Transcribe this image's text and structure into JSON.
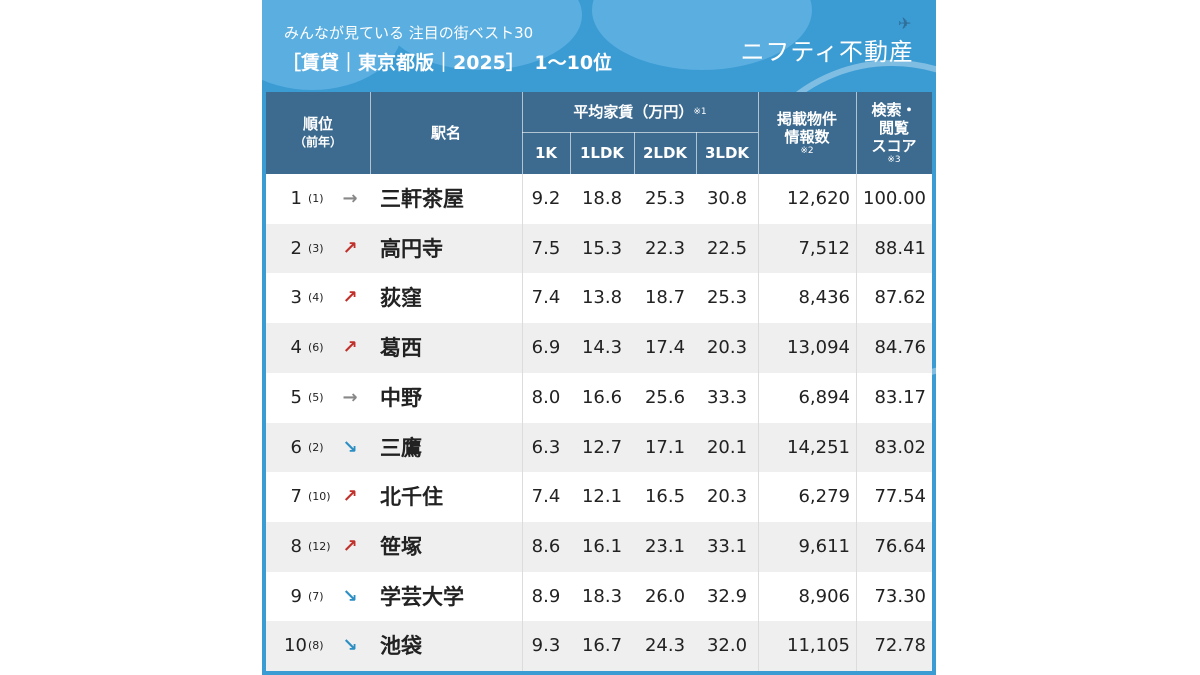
{
  "header": {
    "subtitle": "みんなが見ている 注目の街ベスト30",
    "title": "［賃貸｜東京都版｜2025］　1〜10位",
    "brand": "ニフティ不動産"
  },
  "columns": {
    "rank": "順位",
    "rank_sub": "（前年）",
    "station": "駅名",
    "rent_group": "平均家賃（万円）",
    "rent_note": "※1",
    "k1": "1K",
    "ldk1": "1LDK",
    "ldk2": "2LDK",
    "ldk3": "3LDK",
    "listings": "掲載物件\n情報数",
    "listings_note": "※2",
    "score": "検索・\n閲覧\nスコア",
    "score_note": "※3"
  },
  "colors": {
    "background": "#3b9bd3",
    "header": "#3d6b8f",
    "up": "#c0312b",
    "down": "#2c8fc4",
    "same": "#888888"
  },
  "rows": [
    {
      "rank": "1",
      "prev": "(1)",
      "trend": "same",
      "arrow": "→",
      "name": "三軒茶屋",
      "k1": "9.2",
      "ldk1": "18.8",
      "ldk2": "25.3",
      "ldk3": "30.8",
      "listings": "12,620",
      "score": "100.00"
    },
    {
      "rank": "2",
      "prev": "(3)",
      "trend": "up",
      "arrow": "↗",
      "name": "高円寺",
      "k1": "7.5",
      "ldk1": "15.3",
      "ldk2": "22.3",
      "ldk3": "22.5",
      "listings": "7,512",
      "score": "88.41"
    },
    {
      "rank": "3",
      "prev": "(4)",
      "trend": "up",
      "arrow": "↗",
      "name": "荻窪",
      "k1": "7.4",
      "ldk1": "13.8",
      "ldk2": "18.7",
      "ldk3": "25.3",
      "listings": "8,436",
      "score": "87.62"
    },
    {
      "rank": "4",
      "prev": "(6)",
      "trend": "up",
      "arrow": "↗",
      "name": "葛西",
      "k1": "6.9",
      "ldk1": "14.3",
      "ldk2": "17.4",
      "ldk3": "20.3",
      "listings": "13,094",
      "score": "84.76"
    },
    {
      "rank": "5",
      "prev": "(5)",
      "trend": "same",
      "arrow": "→",
      "name": "中野",
      "k1": "8.0",
      "ldk1": "16.6",
      "ldk2": "25.6",
      "ldk3": "33.3",
      "listings": "6,894",
      "score": "83.17"
    },
    {
      "rank": "6",
      "prev": "(2)",
      "trend": "down",
      "arrow": "↘",
      "name": "三鷹",
      "k1": "6.3",
      "ldk1": "12.7",
      "ldk2": "17.1",
      "ldk3": "20.1",
      "listings": "14,251",
      "score": "83.02"
    },
    {
      "rank": "7",
      "prev": "(10)",
      "trend": "up",
      "arrow": "↗",
      "name": "北千住",
      "k1": "7.4",
      "ldk1": "12.1",
      "ldk2": "16.5",
      "ldk3": "20.3",
      "listings": "6,279",
      "score": "77.54"
    },
    {
      "rank": "8",
      "prev": "(12)",
      "trend": "up",
      "arrow": "↗",
      "name": "笹塚",
      "k1": "8.6",
      "ldk1": "16.1",
      "ldk2": "23.1",
      "ldk3": "33.1",
      "listings": "9,611",
      "score": "76.64"
    },
    {
      "rank": "9",
      "prev": "(7)",
      "trend": "down",
      "arrow": "↘",
      "name": "学芸大学",
      "k1": "8.9",
      "ldk1": "18.3",
      "ldk2": "26.0",
      "ldk3": "32.9",
      "listings": "8,906",
      "score": "73.30"
    },
    {
      "rank": "10",
      "prev": "(8)",
      "trend": "down",
      "arrow": "↘",
      "name": "池袋",
      "k1": "9.3",
      "ldk1": "16.7",
      "ldk2": "24.3",
      "ldk3": "32.0",
      "listings": "11,105",
      "score": "72.78"
    }
  ]
}
